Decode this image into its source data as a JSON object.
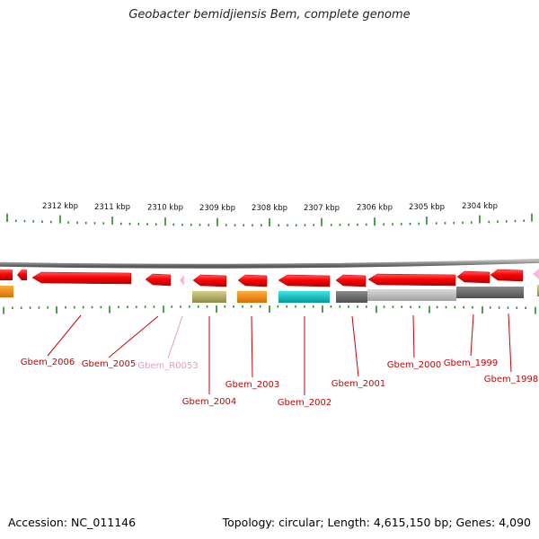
{
  "title": "Geobacter bemidjiensis Bem, complete genome",
  "footer": {
    "accession_label": "Accession:",
    "accession": "NC_011146",
    "topology_label": "Topology:",
    "topology": "circular",
    "length_label": "Length:",
    "length": "4,615,150 bp",
    "genes_label": "Genes:",
    "genes": "4,090"
  },
  "colors": {
    "cds": "#ff0000",
    "rna": "#ffb6d9",
    "ruler_ticks": "#228b22",
    "label_cds": "#cc0000",
    "label_rna": "#e89ac0",
    "backbone": "#888888",
    "cog_olive": "#b8b26a",
    "cog_orange": "#ff8c00",
    "cog_cyan": "#00c8c8",
    "cog_dark_gray": "#6e6e6e",
    "cog_light_gray": "#c0c0c0"
  },
  "ruler": {
    "labels": [
      "2312 kbp",
      "2311 kbp",
      "2310 kbp",
      "2309 kbp",
      "2308 kbp",
      "2307 kbp",
      "2306 kbp",
      "2305 kbp",
      "2304 kbp"
    ]
  },
  "genes": [
    {
      "name": "Gbem_2006",
      "type": "CDS"
    },
    {
      "name": "Gbem_2005",
      "type": "CDS"
    },
    {
      "name": "Gbem_R0053",
      "type": "RNA"
    },
    {
      "name": "Gbem_2004",
      "type": "CDS"
    },
    {
      "name": "Gbem_2003",
      "type": "CDS"
    },
    {
      "name": "Gbem_2002",
      "type": "CDS"
    },
    {
      "name": "Gbem_2001",
      "type": "CDS"
    },
    {
      "name": "Gbem_2000",
      "type": "CDS"
    },
    {
      "name": "Gbem_1999",
      "type": "CDS"
    },
    {
      "name": "Gbem_1998",
      "type": "CDS"
    }
  ]
}
